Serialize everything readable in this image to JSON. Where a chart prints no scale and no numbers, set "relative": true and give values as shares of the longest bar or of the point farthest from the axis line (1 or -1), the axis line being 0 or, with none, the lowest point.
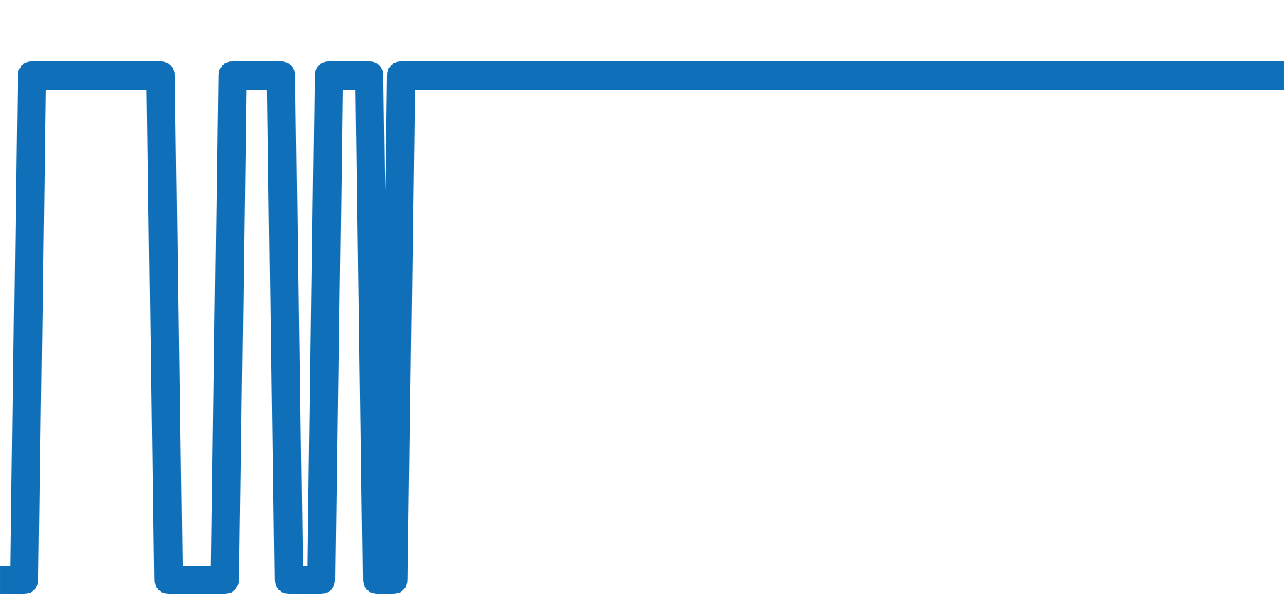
{
  "chart_data": {
    "type": "line",
    "relative": true,
    "color": "#0f6fb8",
    "categories": [
      null,
      null,
      null,
      null,
      null,
      null,
      null,
      null,
      null,
      null,
      null,
      null,
      null,
      null,
      null,
      null,
      null,
      null,
      null,
      null,
      null,
      null,
      null,
      null,
      null,
      null,
      null,
      null,
      null,
      null,
      null,
      null,
      null,
      null,
      null,
      null,
      null,
      null,
      null,
      null,
      null,
      null,
      null,
      null,
      null,
      null,
      null,
      null,
      null,
      null,
      null,
      null,
      null,
      null,
      null,
      null,
      null,
      null,
      null,
      null,
      null,
      null,
      null,
      null,
      null,
      null,
      null,
      null,
      null,
      null,
      null,
      null,
      null,
      null,
      null,
      null,
      null,
      null,
      null,
      null,
      null,
      null,
      null,
      null,
      null,
      null,
      null,
      null,
      null,
      null,
      null,
      null,
      null,
      null,
      null,
      null,
      null,
      null,
      null,
      null,
      null,
      null,
      null,
      null,
      null,
      null,
      null,
      null,
      null,
      null,
      null,
      null,
      null,
      null,
      null,
      null,
      null,
      null,
      null,
      null,
      null,
      null,
      null,
      null,
      null,
      null,
      null,
      null,
      null,
      null,
      null,
      null,
      null,
      null,
      null,
      null,
      null,
      null,
      null,
      null,
      null,
      null,
      null,
      null,
      null,
      null,
      null,
      null,
      null,
      null,
      null,
      null,
      null,
      null,
      null,
      null,
      null,
      null,
      null,
      null,
      null
    ],
    "values": [
      0,
      0,
      0,
      0,
      1,
      1,
      1,
      1,
      1,
      1,
      1,
      1,
      1,
      1,
      1,
      1,
      1,
      1,
      1,
      1,
      1,
      0,
      0,
      0,
      0,
      0,
      0,
      0,
      0,
      1,
      1,
      1,
      1,
      1,
      1,
      1,
      0,
      0,
      0,
      0,
      0,
      1,
      1,
      1,
      1,
      1,
      1,
      0,
      0,
      0,
      1,
      1,
      1,
      1,
      1,
      1,
      1,
      1,
      1,
      1,
      1,
      1,
      1,
      1,
      1,
      1,
      1,
      1,
      1,
      1,
      1,
      1,
      1,
      1,
      1,
      1,
      1,
      1,
      1,
      1,
      1,
      1,
      1,
      1,
      1,
      1,
      1,
      1,
      1,
      1,
      1,
      1,
      1,
      1,
      1,
      1,
      1,
      1,
      1,
      1,
      1,
      1,
      1,
      1,
      1,
      1,
      1,
      1,
      1,
      1,
      1,
      1,
      1,
      1,
      1,
      1,
      1,
      1,
      1,
      1,
      1,
      1,
      1,
      1,
      1,
      1,
      1,
      1,
      1,
      1,
      1,
      1,
      1,
      1,
      1,
      1,
      1,
      1,
      1,
      1,
      1,
      1,
      1,
      1,
      1,
      1,
      1,
      1,
      1,
      1,
      1,
      1,
      1,
      1,
      1,
      1,
      1,
      1,
      1,
      1,
      1
    ]
  }
}
